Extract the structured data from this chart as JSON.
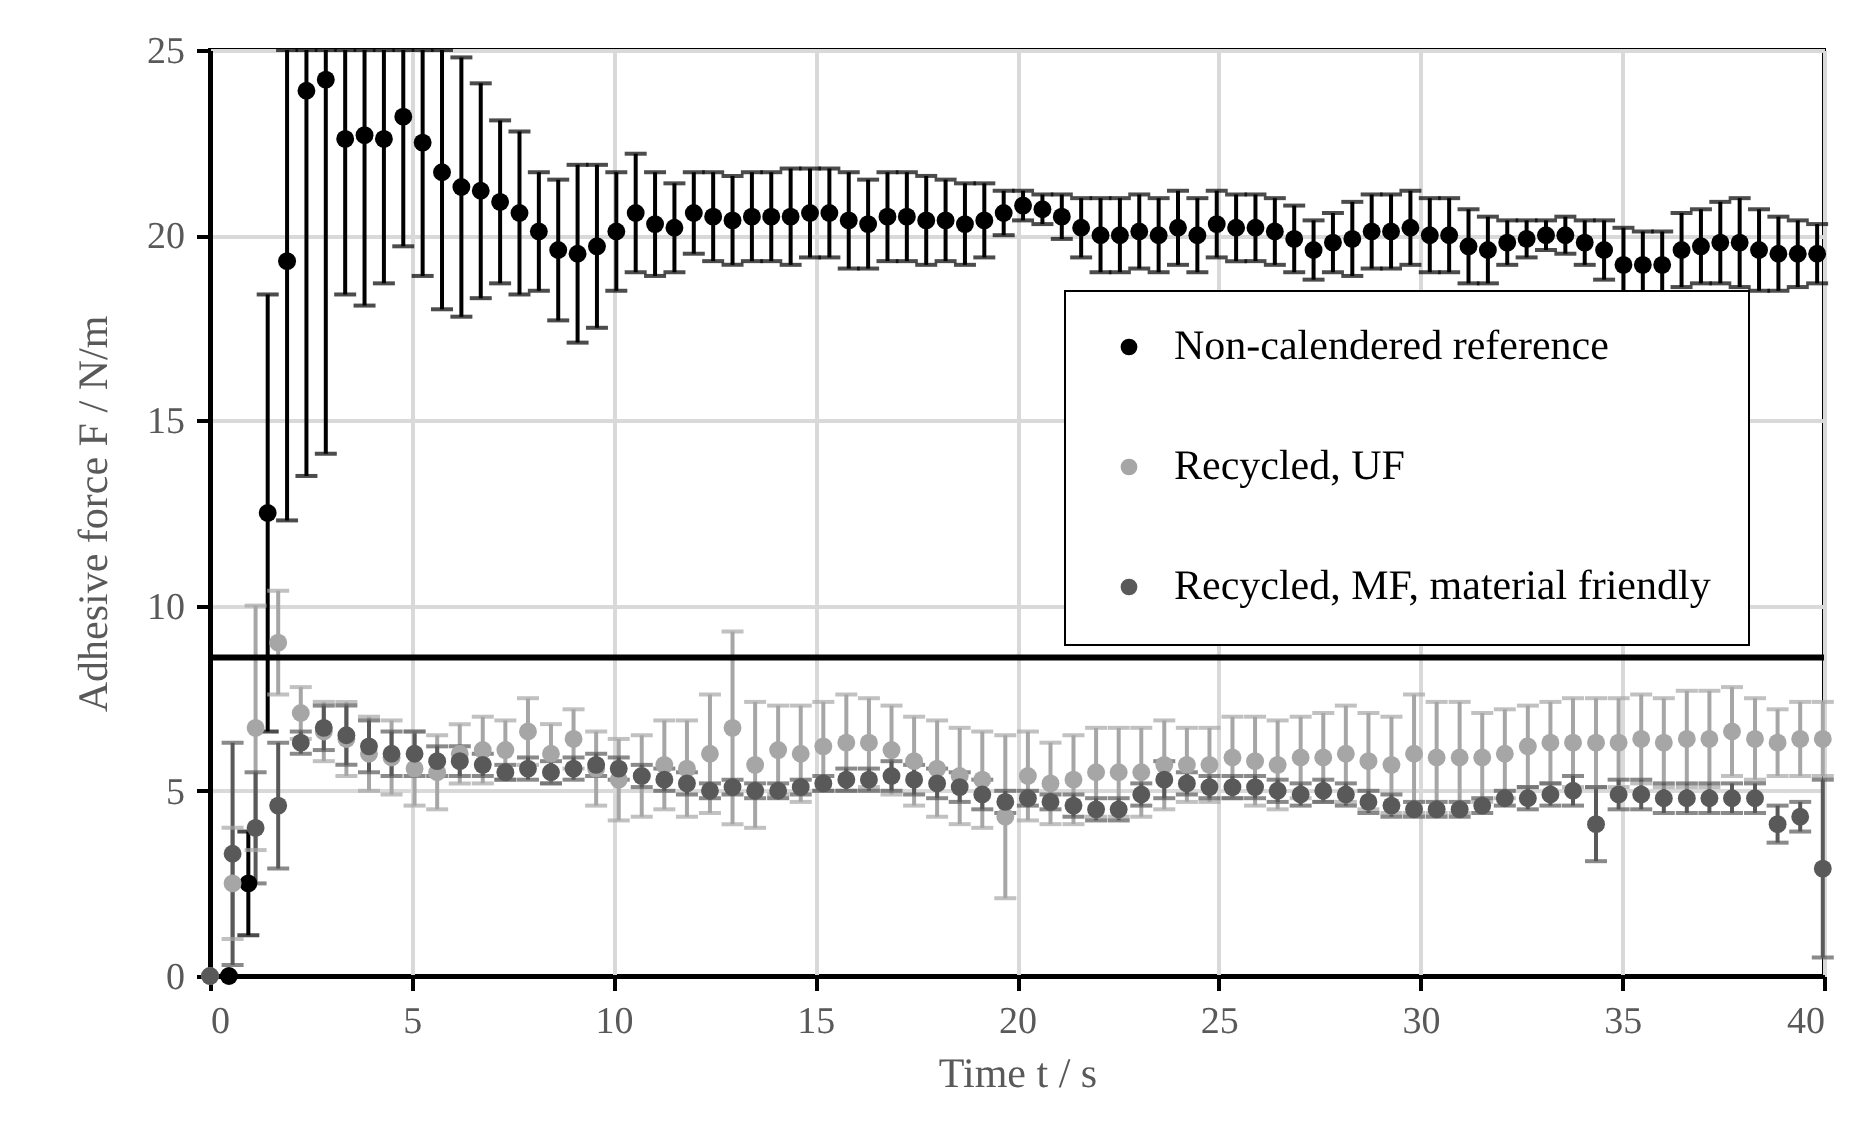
{
  "chart_data": {
    "type": "scatter",
    "xlabel": "Time t / s",
    "ylabel": "Adhesive force F / N/m",
    "xlim": [
      0,
      40
    ],
    "xticks": [
      0,
      5,
      10,
      15,
      20,
      25,
      30,
      35,
      40
    ],
    "ylim": [
      0,
      25
    ],
    "yticks": [
      0,
      5,
      10,
      15,
      20,
      25
    ],
    "grid": true,
    "legend": "right",
    "marker": "circle",
    "ref_lines": [
      {
        "axis": "y",
        "value": 8.6,
        "color": "#000000"
      }
    ],
    "series": [
      {
        "name": "Non-calendered reference",
        "color": "#000000",
        "x": [
          0.47,
          0.95,
          1.43,
          1.91,
          2.39,
          2.87,
          3.35,
          3.83,
          4.31,
          4.79,
          5.27,
          5.75,
          6.23,
          6.71,
          7.19,
          7.67,
          8.15,
          8.63,
          9.11,
          9.59,
          10.07,
          10.55,
          11.03,
          11.51,
          11.99,
          12.47,
          12.95,
          13.43,
          13.91,
          14.39,
          14.87,
          15.35,
          15.83,
          16.31,
          16.79,
          17.27,
          17.75,
          18.23,
          18.71,
          19.19,
          19.67,
          20.15,
          20.63,
          21.11,
          21.59,
          22.07,
          22.55,
          23.03,
          23.51,
          23.99,
          24.47,
          24.95,
          25.43,
          25.91,
          26.39,
          26.87,
          27.35,
          27.83,
          28.31,
          28.79,
          29.27,
          29.75,
          30.23,
          30.71,
          31.19,
          31.67,
          32.15,
          32.63,
          33.11,
          33.59,
          34.07,
          34.55,
          35.03,
          35.51,
          35.99,
          36.47,
          36.95,
          37.43,
          37.91,
          38.39,
          38.87,
          39.35,
          39.83
        ],
        "values": [
          0,
          2.5,
          12.5,
          19.3,
          23.9,
          24.2,
          22.6,
          22.7,
          22.6,
          23.2,
          22.5,
          21.7,
          21.3,
          21.2,
          20.9,
          20.6,
          20.1,
          19.6,
          19.5,
          19.7,
          20.1,
          20.6,
          20.3,
          20.2,
          20.6,
          20.5,
          20.4,
          20.5,
          20.5,
          20.5,
          20.6,
          20.6,
          20.4,
          20.3,
          20.5,
          20.5,
          20.4,
          20.4,
          20.3,
          20.4,
          20.6,
          20.8,
          20.7,
          20.5,
          20.2,
          20.0,
          20.0,
          20.1,
          20.0,
          20.2,
          20.0,
          20.3,
          20.2,
          20.2,
          20.1,
          19.9,
          19.6,
          19.8,
          19.9,
          20.1,
          20.1,
          20.2,
          20.0,
          20.0,
          19.7,
          19.6,
          19.8,
          19.9,
          20.0,
          20.0,
          19.8,
          19.6,
          19.2,
          19.2,
          19.2,
          19.6,
          19.7,
          19.8,
          19.8,
          19.6,
          19.5,
          19.5,
          19.5
        ],
        "errors": [
          null,
          1.4,
          5.9,
          [
            12.3,
            25
          ],
          [
            13.5,
            25
          ],
          [
            14.1,
            25
          ],
          [
            18.4,
            25
          ],
          [
            18.1,
            25
          ],
          [
            18.7,
            25
          ],
          [
            19.7,
            25
          ],
          [
            18.9,
            25
          ],
          [
            18.0,
            25
          ],
          3.5,
          2.9,
          2.2,
          2.2,
          1.6,
          1.9,
          2.4,
          2.2,
          1.6,
          1.6,
          1.4,
          1.2,
          1.1,
          1.2,
          1.2,
          1.2,
          1.2,
          1.3,
          1.2,
          1.2,
          1.3,
          1.2,
          1.2,
          1.2,
          1.2,
          1.1,
          1.1,
          1.0,
          0.6,
          0.4,
          0.4,
          0.6,
          0.8,
          1.0,
          1.0,
          1.0,
          1.0,
          1.0,
          1.0,
          0.9,
          0.9,
          0.9,
          0.9,
          0.9,
          0.8,
          0.8,
          1.0,
          1.0,
          1.0,
          1.0,
          1.0,
          1.0,
          1.0,
          0.9,
          0.6,
          0.5,
          0.4,
          0.5,
          0.6,
          0.8,
          1.0,
          0.9,
          0.9,
          1.0,
          1.0,
          1.1,
          1.2,
          1.1,
          1.0,
          0.9,
          0.8
        ]
      },
      {
        "name": "Recycled, UF",
        "color": "#a6a6a6",
        "x": [
          0,
          0.56,
          1.13,
          1.69,
          2.25,
          2.82,
          3.38,
          3.94,
          4.5,
          5.07,
          5.63,
          6.19,
          6.76,
          7.32,
          7.88,
          8.45,
          9.01,
          9.57,
          10.13,
          10.7,
          11.26,
          11.82,
          12.39,
          12.95,
          13.51,
          14.08,
          14.64,
          15.2,
          15.77,
          16.33,
          16.89,
          17.45,
          18.02,
          18.58,
          19.14,
          19.71,
          20.27,
          20.83,
          21.4,
          21.96,
          22.52,
          23.08,
          23.65,
          24.21,
          24.77,
          25.34,
          25.9,
          26.46,
          27.03,
          27.59,
          28.15,
          28.71,
          29.28,
          29.84,
          30.4,
          30.97,
          31.53,
          32.09,
          32.66,
          33.22,
          33.78,
          34.35,
          34.91,
          35.47,
          36.03,
          36.6,
          37.16,
          37.72,
          38.29,
          38.85,
          39.41,
          39.97
        ],
        "values": [
          0,
          2.5,
          6.7,
          9.0,
          7.1,
          6.6,
          6.4,
          6.0,
          5.9,
          5.6,
          5.5,
          6.0,
          6.1,
          6.1,
          6.6,
          6.0,
          6.4,
          5.6,
          5.3,
          5.4,
          5.7,
          5.6,
          6.0,
          6.7,
          5.7,
          6.1,
          6.0,
          6.2,
          6.3,
          6.3,
          6.1,
          5.8,
          5.6,
          5.4,
          5.3,
          4.3,
          5.4,
          5.2,
          5.3,
          5.5,
          5.5,
          5.5,
          5.7,
          5.7,
          5.7,
          5.9,
          5.8,
          5.7,
          5.9,
          5.9,
          6.0,
          5.8,
          5.7,
          6.0,
          5.9,
          5.9,
          5.9,
          6.0,
          6.2,
          6.3,
          6.3,
          6.3,
          6.3,
          6.4,
          6.3,
          6.4,
          6.4,
          6.6,
          6.4,
          6.3,
          6.4,
          6.4
        ],
        "errors": [
          null,
          1.5,
          3.3,
          1.4,
          0.7,
          0.8,
          1.0,
          1.0,
          1.0,
          1.0,
          1.0,
          0.8,
          0.9,
          0.8,
          0.9,
          0.8,
          0.8,
          1.0,
          1.1,
          1.1,
          1.2,
          1.3,
          1.6,
          2.6,
          1.7,
          1.2,
          1.3,
          1.2,
          1.3,
          1.2,
          1.2,
          1.2,
          1.3,
          1.3,
          1.3,
          2.2,
          1.2,
          1.1,
          1.2,
          1.2,
          1.2,
          1.2,
          1.2,
          1.0,
          1.0,
          1.1,
          1.2,
          1.2,
          1.1,
          1.2,
          1.3,
          1.3,
          1.3,
          1.6,
          1.5,
          1.5,
          1.2,
          1.2,
          1.1,
          1.1,
          1.2,
          1.2,
          1.2,
          1.2,
          1.2,
          1.3,
          1.3,
          1.2,
          1.1,
          0.9,
          1.0,
          1.0
        ]
      },
      {
        "name": "Recycled, MF, material friendly",
        "color": "#595959",
        "x": [
          0,
          0.56,
          1.13,
          1.69,
          2.25,
          2.82,
          3.38,
          3.94,
          4.5,
          5.07,
          5.63,
          6.19,
          6.76,
          7.32,
          7.88,
          8.45,
          9.01,
          9.57,
          10.13,
          10.7,
          11.26,
          11.82,
          12.39,
          12.95,
          13.51,
          14.08,
          14.64,
          15.2,
          15.77,
          16.33,
          16.89,
          17.45,
          18.02,
          18.58,
          19.14,
          19.71,
          20.27,
          20.83,
          21.4,
          21.96,
          22.52,
          23.08,
          23.65,
          24.21,
          24.77,
          25.34,
          25.9,
          26.46,
          27.03,
          27.59,
          28.15,
          28.71,
          29.28,
          29.84,
          30.4,
          30.97,
          31.53,
          32.09,
          32.66,
          33.22,
          33.78,
          34.35,
          34.91,
          35.47,
          36.03,
          36.6,
          37.16,
          37.72,
          38.29,
          38.85,
          39.41,
          39.97
        ],
        "values": [
          0,
          3.3,
          4.0,
          4.6,
          6.3,
          6.7,
          6.5,
          6.2,
          6.0,
          6.0,
          5.8,
          5.8,
          5.7,
          5.5,
          5.6,
          5.5,
          5.6,
          5.7,
          5.6,
          5.4,
          5.3,
          5.2,
          5.0,
          5.1,
          5.0,
          5.0,
          5.1,
          5.2,
          5.3,
          5.3,
          5.4,
          5.3,
          5.2,
          5.1,
          4.9,
          4.7,
          4.8,
          4.7,
          4.6,
          4.5,
          4.5,
          4.9,
          5.3,
          5.2,
          5.1,
          5.1,
          5.1,
          5.0,
          4.9,
          5.0,
          4.9,
          4.7,
          4.6,
          4.5,
          4.5,
          4.5,
          4.6,
          4.8,
          4.8,
          4.9,
          5.0,
          4.1,
          4.9,
          4.9,
          4.8,
          4.8,
          4.8,
          4.8,
          4.8,
          4.1,
          4.3,
          2.9
        ],
        "errors": [
          null,
          3.0,
          1.5,
          1.7,
          0.3,
          0.6,
          0.8,
          0.7,
          0.6,
          0.6,
          0.4,
          0.4,
          0.3,
          0.2,
          0.3,
          0.3,
          0.3,
          0.3,
          0.3,
          0.3,
          0.3,
          0.3,
          0.2,
          0.2,
          0.2,
          0.2,
          0.2,
          0.2,
          0.3,
          0.3,
          0.4,
          0.4,
          0.4,
          0.4,
          0.4,
          0.3,
          0.2,
          0.2,
          0.3,
          0.3,
          0.3,
          0.3,
          0.5,
          0.3,
          0.3,
          0.3,
          0.3,
          0.3,
          0.3,
          0.3,
          0.3,
          0.3,
          0.3,
          0.2,
          0.2,
          0.2,
          0.2,
          0.2,
          0.3,
          0.3,
          0.4,
          1.0,
          0.4,
          0.4,
          0.4,
          0.4,
          0.4,
          0.4,
          0.4,
          0.5,
          0.4,
          2.4
        ]
      }
    ]
  }
}
